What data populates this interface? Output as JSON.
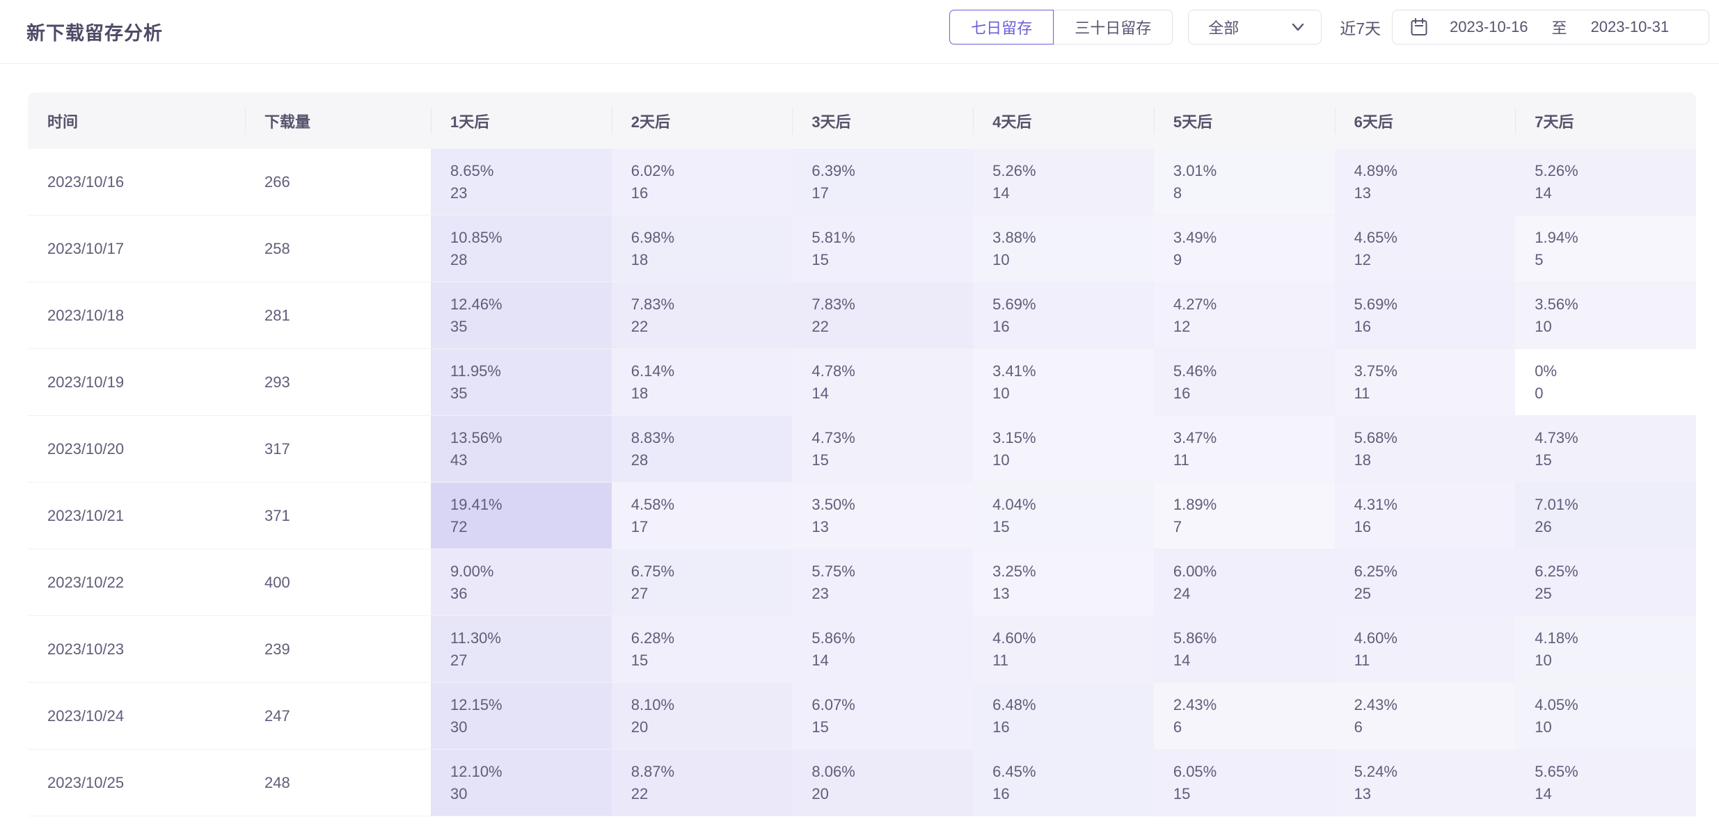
{
  "header": {
    "title": "新下载留存分析",
    "tabs": [
      {
        "label": "七日留存",
        "active": true
      },
      {
        "label": "三十日留存",
        "active": false
      }
    ],
    "scope_select": {
      "value": "全部"
    },
    "quick_range_label": "近7天",
    "date_range": {
      "start": "2023-10-16",
      "separator": "至",
      "end": "2023-10-31"
    }
  },
  "colors": {
    "accent": "#6A5FD9",
    "cell_base_rgb": "99,88,212",
    "header_bg": "#F6F6F8",
    "border": "#E2E1E9"
  },
  "table": {
    "columns": [
      "时间",
      "下载量",
      "1天后",
      "2天后",
      "3天后",
      "4天后",
      "5天后",
      "6天后",
      "7天后"
    ],
    "rows": [
      {
        "date": "2023/10/16",
        "downloads": "266",
        "cells": [
          {
            "pct": "8.65%",
            "n": "23"
          },
          {
            "pct": "6.02%",
            "n": "16"
          },
          {
            "pct": "6.39%",
            "n": "17"
          },
          {
            "pct": "5.26%",
            "n": "14"
          },
          {
            "pct": "3.01%",
            "n": "8"
          },
          {
            "pct": "4.89%",
            "n": "13"
          },
          {
            "pct": "5.26%",
            "n": "14"
          }
        ]
      },
      {
        "date": "2023/10/17",
        "downloads": "258",
        "cells": [
          {
            "pct": "10.85%",
            "n": "28"
          },
          {
            "pct": "6.98%",
            "n": "18"
          },
          {
            "pct": "5.81%",
            "n": "15"
          },
          {
            "pct": "3.88%",
            "n": "10"
          },
          {
            "pct": "3.49%",
            "n": "9"
          },
          {
            "pct": "4.65%",
            "n": "12"
          },
          {
            "pct": "1.94%",
            "n": "5"
          }
        ]
      },
      {
        "date": "2023/10/18",
        "downloads": "281",
        "cells": [
          {
            "pct": "12.46%",
            "n": "35"
          },
          {
            "pct": "7.83%",
            "n": "22"
          },
          {
            "pct": "7.83%",
            "n": "22"
          },
          {
            "pct": "5.69%",
            "n": "16"
          },
          {
            "pct": "4.27%",
            "n": "12"
          },
          {
            "pct": "5.69%",
            "n": "16"
          },
          {
            "pct": "3.56%",
            "n": "10"
          }
        ]
      },
      {
        "date": "2023/10/19",
        "downloads": "293",
        "cells": [
          {
            "pct": "11.95%",
            "n": "35"
          },
          {
            "pct": "6.14%",
            "n": "18"
          },
          {
            "pct": "4.78%",
            "n": "14"
          },
          {
            "pct": "3.41%",
            "n": "10"
          },
          {
            "pct": "5.46%",
            "n": "16"
          },
          {
            "pct": "3.75%",
            "n": "11"
          },
          {
            "pct": "0%",
            "n": "0"
          }
        ]
      },
      {
        "date": "2023/10/20",
        "downloads": "317",
        "cells": [
          {
            "pct": "13.56%",
            "n": "43"
          },
          {
            "pct": "8.83%",
            "n": "28"
          },
          {
            "pct": "4.73%",
            "n": "15"
          },
          {
            "pct": "3.15%",
            "n": "10"
          },
          {
            "pct": "3.47%",
            "n": "11"
          },
          {
            "pct": "5.68%",
            "n": "18"
          },
          {
            "pct": "4.73%",
            "n": "15"
          }
        ]
      },
      {
        "date": "2023/10/21",
        "downloads": "371",
        "cells": [
          {
            "pct": "19.41%",
            "n": "72"
          },
          {
            "pct": "4.58%",
            "n": "17"
          },
          {
            "pct": "3.50%",
            "n": "13"
          },
          {
            "pct": "4.04%",
            "n": "15"
          },
          {
            "pct": "1.89%",
            "n": "7"
          },
          {
            "pct": "4.31%",
            "n": "16"
          },
          {
            "pct": "7.01%",
            "n": "26"
          }
        ]
      },
      {
        "date": "2023/10/22",
        "downloads": "400",
        "cells": [
          {
            "pct": "9.00%",
            "n": "36"
          },
          {
            "pct": "6.75%",
            "n": "27"
          },
          {
            "pct": "5.75%",
            "n": "23"
          },
          {
            "pct": "3.25%",
            "n": "13"
          },
          {
            "pct": "6.00%",
            "n": "24"
          },
          {
            "pct": "6.25%",
            "n": "25"
          },
          {
            "pct": "6.25%",
            "n": "25"
          }
        ]
      },
      {
        "date": "2023/10/23",
        "downloads": "239",
        "cells": [
          {
            "pct": "11.30%",
            "n": "27"
          },
          {
            "pct": "6.28%",
            "n": "15"
          },
          {
            "pct": "5.86%",
            "n": "14"
          },
          {
            "pct": "4.60%",
            "n": "11"
          },
          {
            "pct": "5.86%",
            "n": "14"
          },
          {
            "pct": "4.60%",
            "n": "11"
          },
          {
            "pct": "4.18%",
            "n": "10"
          }
        ]
      },
      {
        "date": "2023/10/24",
        "downloads": "247",
        "cells": [
          {
            "pct": "12.15%",
            "n": "30"
          },
          {
            "pct": "8.10%",
            "n": "20"
          },
          {
            "pct": "6.07%",
            "n": "15"
          },
          {
            "pct": "6.48%",
            "n": "16"
          },
          {
            "pct": "2.43%",
            "n": "6"
          },
          {
            "pct": "2.43%",
            "n": "6"
          },
          {
            "pct": "4.05%",
            "n": "10"
          }
        ]
      },
      {
        "date": "2023/10/25",
        "downloads": "248",
        "cells": [
          {
            "pct": "12.10%",
            "n": "30"
          },
          {
            "pct": "8.87%",
            "n": "22"
          },
          {
            "pct": "8.06%",
            "n": "20"
          },
          {
            "pct": "6.45%",
            "n": "16"
          },
          {
            "pct": "6.05%",
            "n": "15"
          },
          {
            "pct": "5.24%",
            "n": "13"
          },
          {
            "pct": "5.65%",
            "n": "14"
          }
        ]
      }
    ]
  }
}
